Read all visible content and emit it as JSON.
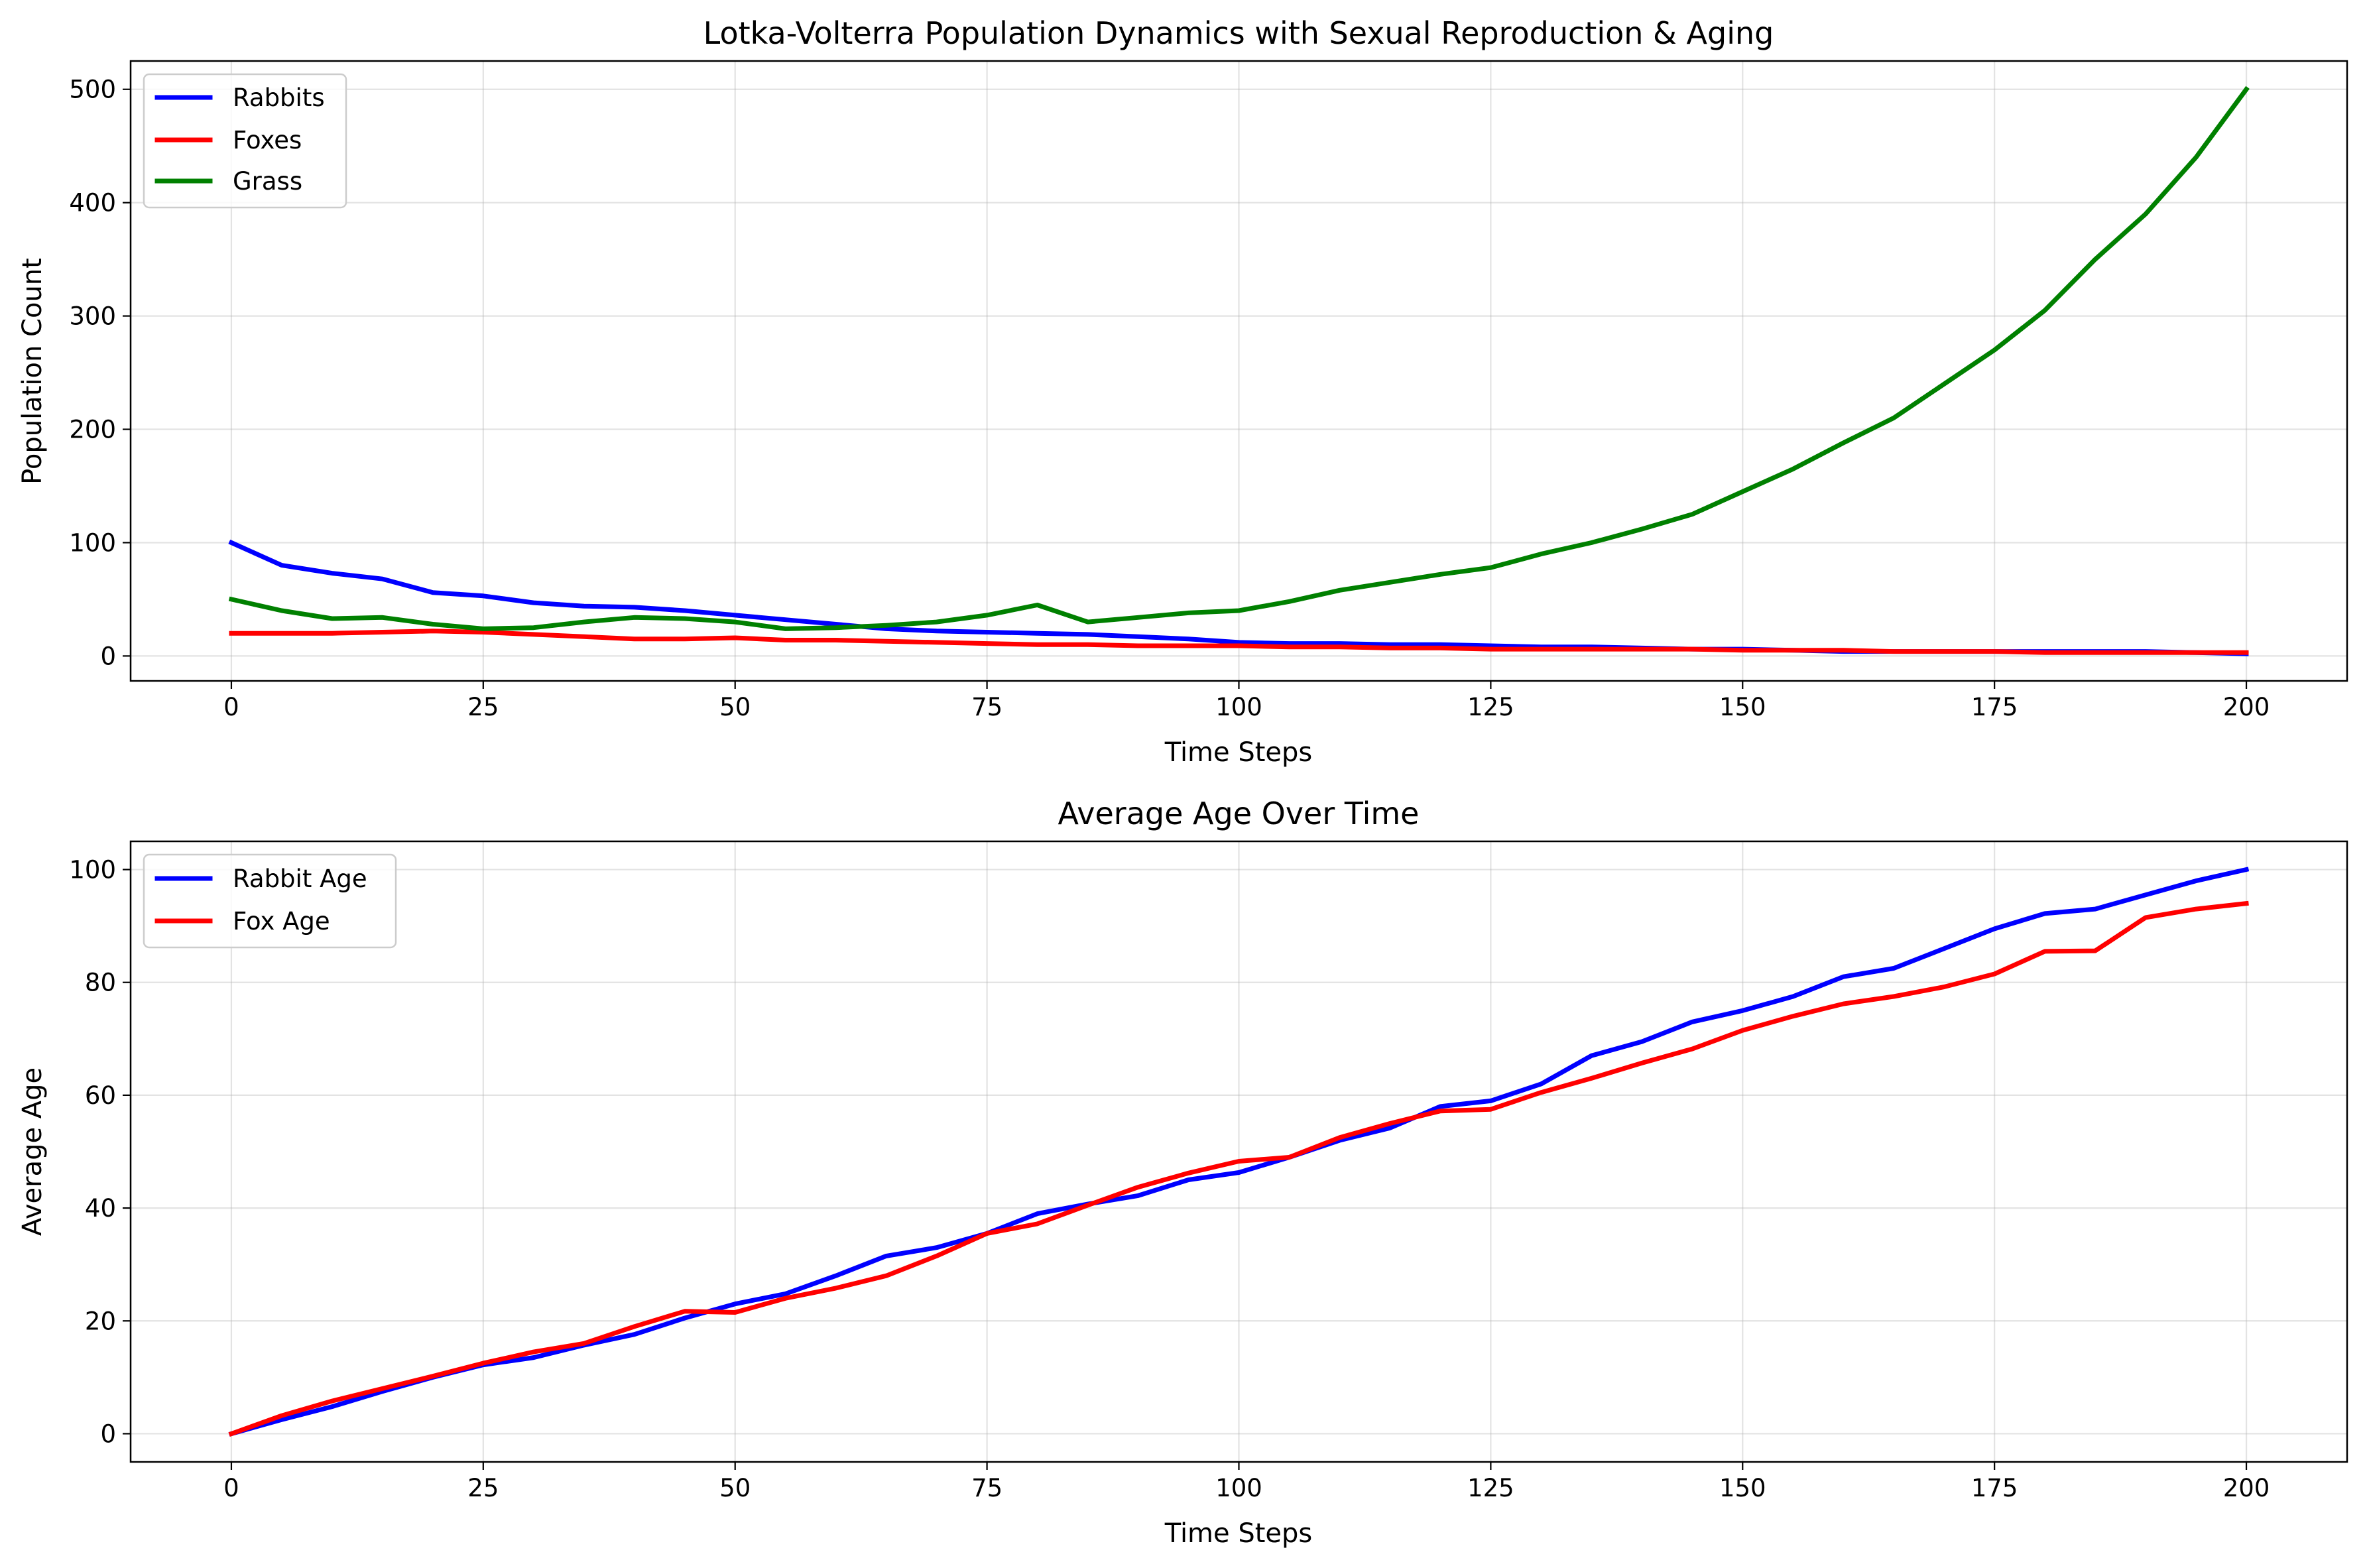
{
  "chart_data": [
    {
      "type": "line",
      "title": "Lotka-Volterra Population Dynamics with Sexual Reproduction & Aging",
      "xlabel": "Time Steps",
      "ylabel": "Population Count",
      "xlim": [
        -10,
        210
      ],
      "ylim": [
        -22,
        525
      ],
      "xticks": [
        0,
        25,
        50,
        75,
        100,
        125,
        150,
        175,
        200
      ],
      "yticks": [
        0,
        100,
        200,
        300,
        400,
        500
      ],
      "grid": true,
      "legend_position": "top-left",
      "x": [
        0,
        5,
        10,
        15,
        20,
        25,
        30,
        35,
        40,
        45,
        50,
        55,
        60,
        65,
        70,
        75,
        80,
        85,
        90,
        95,
        100,
        105,
        110,
        115,
        120,
        125,
        130,
        135,
        140,
        145,
        150,
        155,
        160,
        165,
        170,
        175,
        180,
        185,
        190,
        195,
        200
      ],
      "series": [
        {
          "name": "Rabbits",
          "color": "#0000ff",
          "values": [
            100,
            80,
            73,
            68,
            56,
            53,
            47,
            44,
            43,
            40,
            36,
            32,
            28,
            24,
            22,
            21,
            20,
            19,
            17,
            15,
            12,
            11,
            11,
            10,
            10,
            9,
            8,
            8,
            7,
            6,
            6,
            5,
            4,
            4,
            4,
            4,
            4,
            4,
            4,
            3,
            2
          ]
        },
        {
          "name": "Foxes",
          "color": "#ff0000",
          "values": [
            20,
            20,
            20,
            21,
            22,
            21,
            19,
            17,
            15,
            15,
            16,
            14,
            14,
            13,
            12,
            11,
            10,
            10,
            9,
            9,
            9,
            8,
            8,
            7,
            7,
            6,
            6,
            6,
            6,
            6,
            5,
            5,
            5,
            4,
            4,
            4,
            3,
            3,
            3,
            3,
            3
          ]
        },
        {
          "name": "Grass",
          "color": "#008000",
          "values": [
            50,
            40,
            33,
            34,
            28,
            24,
            25,
            30,
            34,
            33,
            30,
            24,
            25,
            27,
            30,
            36,
            45,
            30,
            34,
            38,
            40,
            48,
            58,
            65,
            72,
            78,
            90,
            100,
            112,
            125,
            145,
            165,
            188,
            210,
            240,
            270,
            305,
            350,
            390,
            440,
            500
          ]
        }
      ]
    },
    {
      "type": "line",
      "title": "Average Age Over Time",
      "xlabel": "Time Steps",
      "ylabel": "Average Age",
      "xlim": [
        -10,
        210
      ],
      "ylim": [
        -5,
        105
      ],
      "xticks": [
        0,
        25,
        50,
        75,
        100,
        125,
        150,
        175,
        200
      ],
      "yticks": [
        0,
        20,
        40,
        60,
        80,
        100
      ],
      "grid": true,
      "legend_position": "top-left",
      "x": [
        0,
        5,
        10,
        15,
        20,
        25,
        30,
        35,
        40,
        45,
        50,
        55,
        60,
        65,
        70,
        75,
        80,
        85,
        90,
        95,
        100,
        105,
        110,
        115,
        120,
        125,
        130,
        135,
        140,
        145,
        150,
        155,
        160,
        165,
        170,
        175,
        180,
        185,
        190,
        195,
        200
      ],
      "series": [
        {
          "name": "Rabbit Age",
          "color": "#0000ff",
          "values": [
            0,
            2.5,
            4.8,
            7.5,
            10,
            12.2,
            13.5,
            15.7,
            17.6,
            20.5,
            23,
            24.8,
            28,
            31.5,
            33,
            35.5,
            39,
            40.7,
            42.2,
            45,
            46.3,
            49,
            52,
            54.2,
            58,
            59,
            62,
            67,
            69.5,
            73,
            75,
            77.5,
            81,
            82.5,
            86,
            89.5,
            92.2,
            93,
            95.5,
            98,
            100
          ]
        },
        {
          "name": "Fox Age",
          "color": "#ff0000",
          "values": [
            0,
            3.2,
            5.8,
            8,
            10.2,
            12.5,
            14.5,
            16,
            19,
            21.7,
            21.5,
            24,
            25.8,
            28,
            31.5,
            35.5,
            37.2,
            40.5,
            43.7,
            46.2,
            48.3,
            49,
            52.5,
            55,
            57.2,
            57.5,
            60.5,
            63,
            65.7,
            68.2,
            71.5,
            74,
            76.2,
            77.5,
            79.2,
            81.5,
            85.5,
            85.6,
            91.5,
            93,
            94
          ]
        }
      ]
    }
  ]
}
